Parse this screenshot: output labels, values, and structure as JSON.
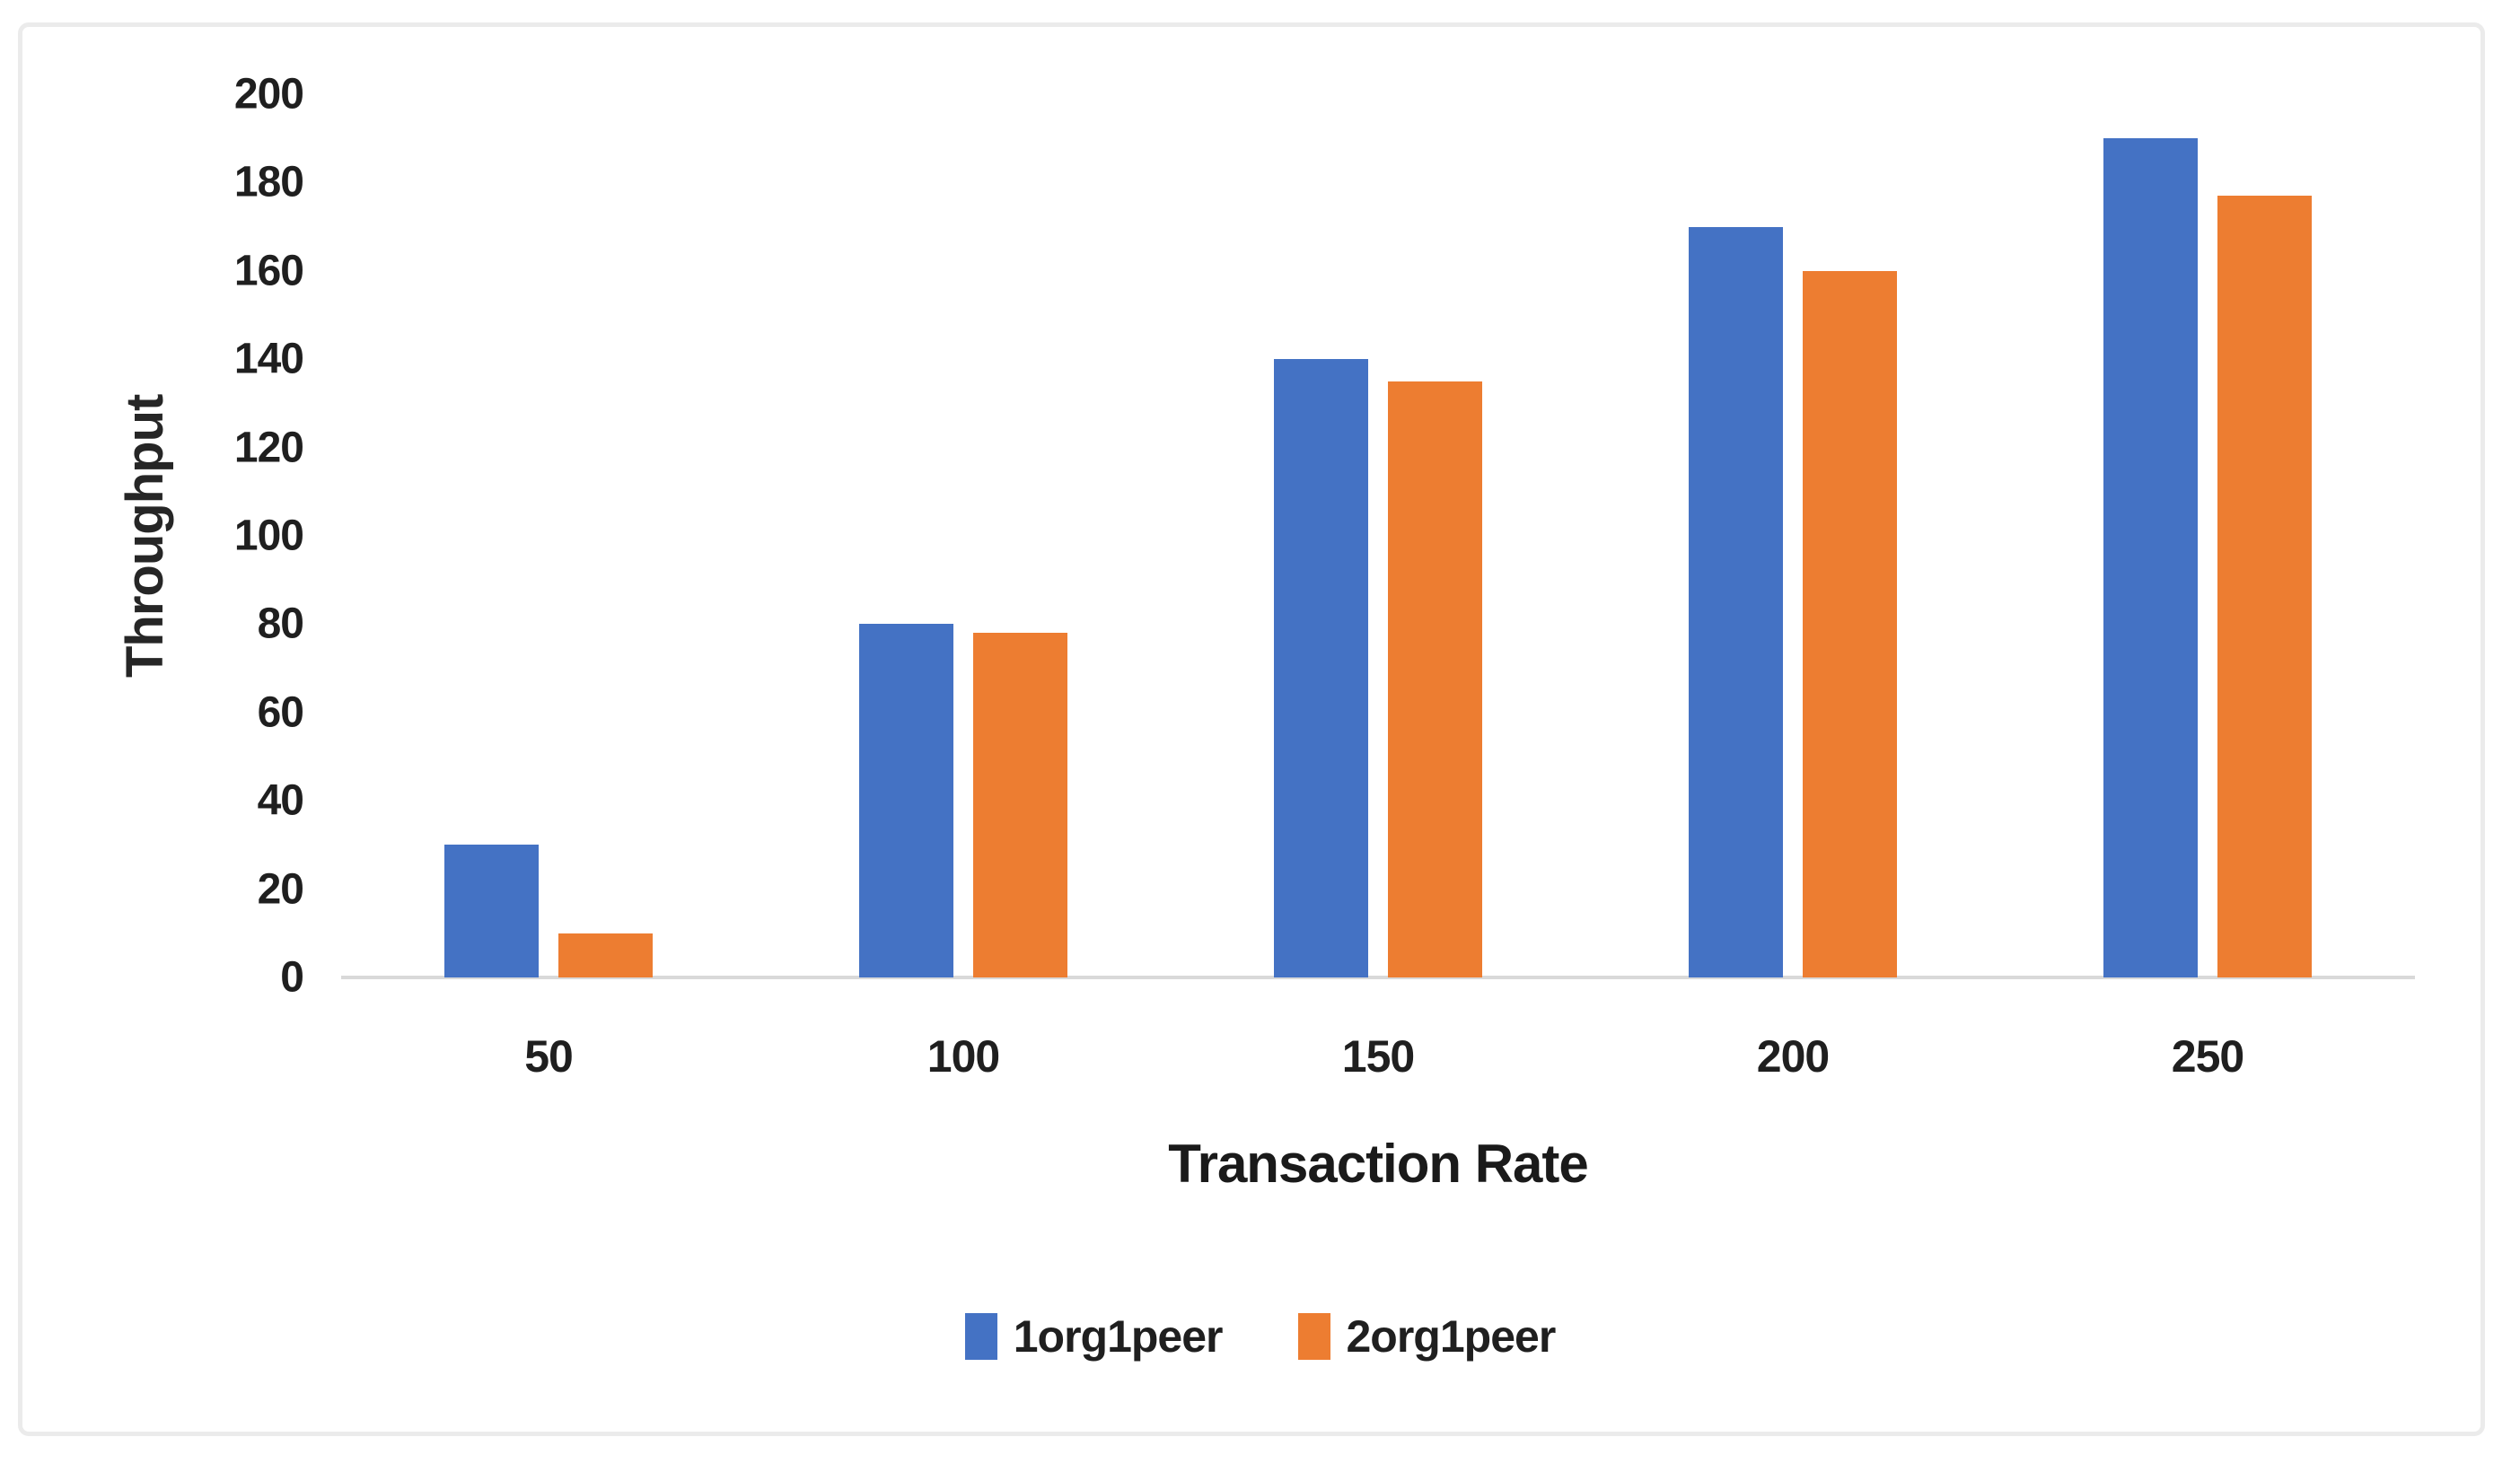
{
  "chart_data": {
    "type": "bar",
    "categories": [
      "50",
      "100",
      "150",
      "200",
      "250"
    ],
    "series": [
      {
        "name": "1org1peer",
        "color": "#4472C4",
        "values": [
          30,
          80,
          140,
          170,
          190
        ]
      },
      {
        "name": "2org1peer",
        "color": "#ED7D31",
        "values": [
          10,
          78,
          135,
          160,
          177
        ]
      }
    ],
    "title": "",
    "xlabel": "Transaction Rate",
    "ylabel": "Throughput",
    "ylim": [
      0,
      200
    ],
    "ytick_step": 20,
    "yticks": [
      "0",
      "20",
      "40",
      "60",
      "80",
      "100",
      "120",
      "140",
      "160",
      "180",
      "200"
    ],
    "grid": false,
    "legend_position": "bottom",
    "colors": {
      "axis_line": "#d9d9d9",
      "text": "#1f1f1f",
      "frame_border": "#ebebeb",
      "background": "#ffffff"
    }
  }
}
